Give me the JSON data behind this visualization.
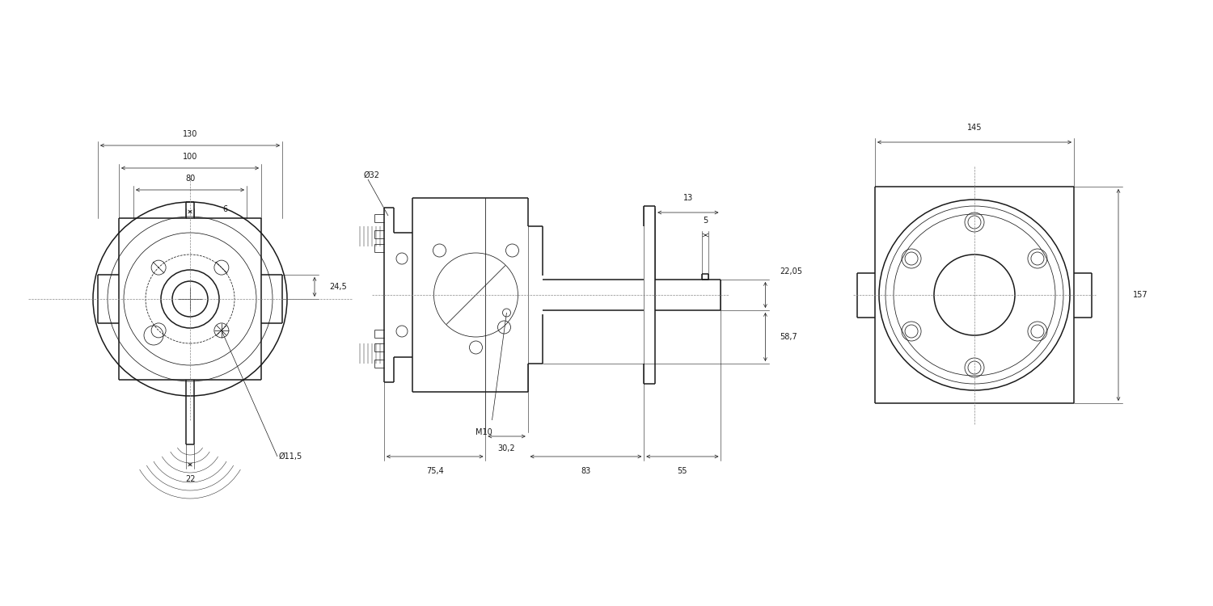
{
  "bg": "#ffffff",
  "lc": "#1a1a1a",
  "dc": "#1a1a1a",
  "fs": 6.5,
  "lw1": 1.1,
  "lw2": 0.55,
  "lw3": 0.35,
  "lwd": 0.5,
  "dims": {
    "d130": "130",
    "d100": "100",
    "d80": "80",
    "d6": "6",
    "d245": "24,5",
    "d22": "22",
    "do115": "Ø11,5",
    "d302": "30,2",
    "d754": "75,4",
    "d83": "83",
    "d55": "55",
    "d2205": "22,05",
    "d587": "58,7",
    "do32": "Ø32",
    "dm10": "M10",
    "d5": "5",
    "d13": "13",
    "d145": "145",
    "d157": "157"
  }
}
